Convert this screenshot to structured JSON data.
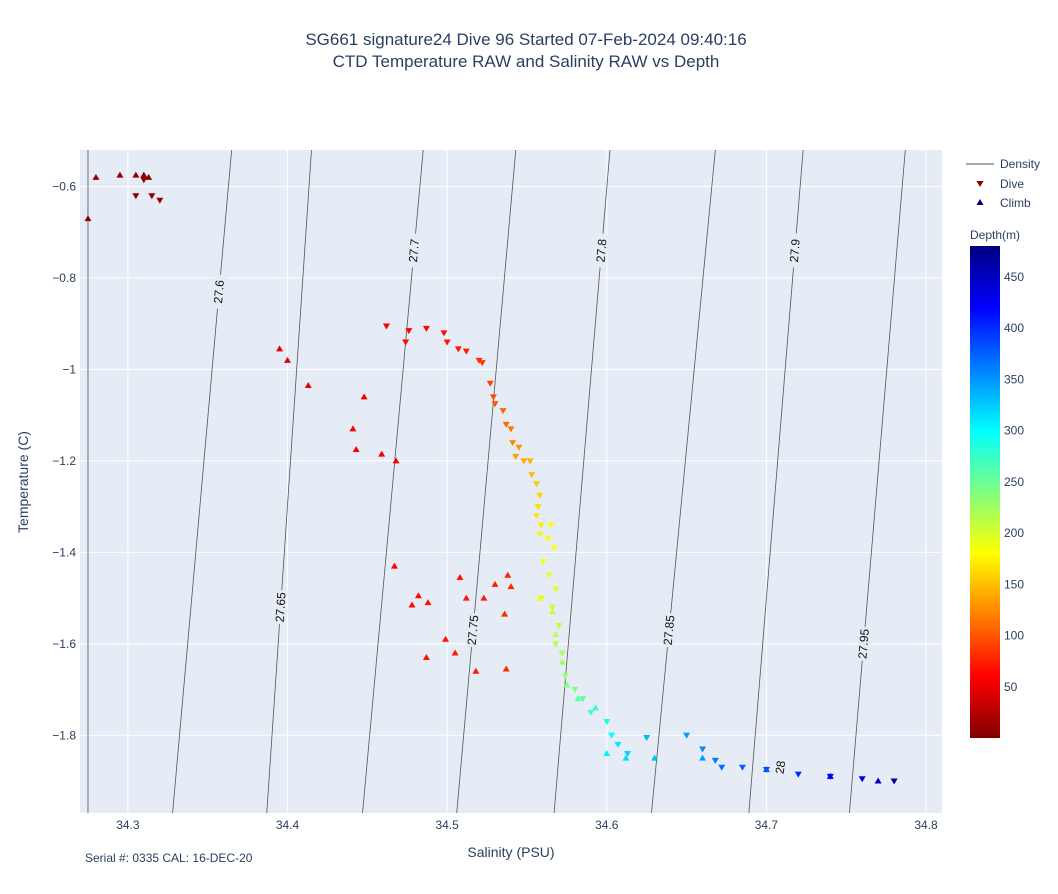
{
  "chart_data": {
    "type": "scatter",
    "title": [
      "SG661 signature24 Dive 96 Started 07-Feb-2024 09:40:16",
      "CTD Temperature RAW and Salinity RAW vs Depth"
    ],
    "xlabel": "Salinity (PSU)",
    "ylabel": "Temperature (C)",
    "xlim": [
      34.27,
      34.81
    ],
    "ylim": [
      -1.97,
      -0.52
    ],
    "xticks": [
      34.3,
      34.4,
      34.5,
      34.6,
      34.7,
      34.8
    ],
    "yticks": [
      -0.6,
      -0.8,
      -1,
      -1.2,
      -1.4,
      -1.6,
      -1.8
    ],
    "grid": true,
    "legend": {
      "placement": "top-right",
      "items": [
        "Density",
        "Dive",
        "Climb"
      ]
    },
    "colorbar": {
      "title": "Depth(m)",
      "range": [
        0,
        480
      ],
      "ticks": [
        50,
        100,
        150,
        200,
        250,
        300,
        350,
        400,
        450
      ],
      "colorscale": "jet"
    },
    "density_contours": {
      "levels": [
        27.6,
        27.65,
        27.7,
        27.75,
        27.8,
        27.85,
        27.9,
        27.95,
        28
      ],
      "labels": [
        "27.6",
        "27.65",
        "27.7",
        "27.75",
        "27.8",
        "27.85",
        "27.9",
        "27.95",
        "28"
      ],
      "s_at_top": [
        34.275,
        34.3,
        34.355,
        34.44,
        34.52,
        34.6,
        34.645,
        34.76,
        34.76
      ],
      "s_at_bottom": [
        34.275,
        34.275,
        34.335,
        34.4,
        34.455,
        34.52,
        34.58,
        34.645,
        34.705
      ],
      "extra_top": [
        34.365,
        34.415,
        34.485,
        34.543,
        34.602,
        34.668,
        34.723,
        34.787
      ],
      "extra_bottom": [
        34.328,
        34.387,
        34.447,
        34.506,
        34.567,
        34.628,
        34.689,
        34.752
      ]
    },
    "dive": [
      {
        "s": 34.31,
        "t": -0.585,
        "d": 8
      },
      {
        "s": 34.305,
        "t": -0.62,
        "d": 8
      },
      {
        "s": 34.315,
        "t": -0.62,
        "d": 8
      },
      {
        "s": 34.32,
        "t": -0.63,
        "d": 10
      },
      {
        "s": 34.462,
        "t": -0.905,
        "d": 60
      },
      {
        "s": 34.476,
        "t": -0.915,
        "d": 62
      },
      {
        "s": 34.487,
        "t": -0.91,
        "d": 64
      },
      {
        "s": 34.474,
        "t": -0.94,
        "d": 64
      },
      {
        "s": 34.498,
        "t": -0.92,
        "d": 66
      },
      {
        "s": 34.5,
        "t": -0.94,
        "d": 68
      },
      {
        "s": 34.507,
        "t": -0.955,
        "d": 70
      },
      {
        "s": 34.512,
        "t": -0.96,
        "d": 72
      },
      {
        "s": 34.52,
        "t": -0.98,
        "d": 80
      },
      {
        "s": 34.522,
        "t": -0.985,
        "d": 85
      },
      {
        "s": 34.527,
        "t": -1.03,
        "d": 90
      },
      {
        "s": 34.529,
        "t": -1.06,
        "d": 95
      },
      {
        "s": 34.53,
        "t": -1.075,
        "d": 100
      },
      {
        "s": 34.535,
        "t": -1.09,
        "d": 105
      },
      {
        "s": 34.537,
        "t": -1.12,
        "d": 110
      },
      {
        "s": 34.54,
        "t": -1.13,
        "d": 115
      },
      {
        "s": 34.541,
        "t": -1.16,
        "d": 125
      },
      {
        "s": 34.545,
        "t": -1.17,
        "d": 130
      },
      {
        "s": 34.543,
        "t": -1.19,
        "d": 135
      },
      {
        "s": 34.548,
        "t": -1.2,
        "d": 140
      },
      {
        "s": 34.552,
        "t": -1.2,
        "d": 145
      },
      {
        "s": 34.553,
        "t": -1.23,
        "d": 150
      },
      {
        "s": 34.556,
        "t": -1.25,
        "d": 155
      },
      {
        "s": 34.558,
        "t": -1.275,
        "d": 160
      },
      {
        "s": 34.557,
        "t": -1.3,
        "d": 165
      },
      {
        "s": 34.556,
        "t": -1.32,
        "d": 170
      },
      {
        "s": 34.559,
        "t": -1.34,
        "d": 172
      },
      {
        "s": 34.558,
        "t": -1.36,
        "d": 175
      },
      {
        "s": 34.563,
        "t": -1.37,
        "d": 178
      },
      {
        "s": 34.565,
        "t": -1.34,
        "d": 180
      },
      {
        "s": 34.567,
        "t": -1.39,
        "d": 180
      },
      {
        "s": 34.56,
        "t": -1.42,
        "d": 185
      },
      {
        "s": 34.564,
        "t": -1.45,
        "d": 190
      },
      {
        "s": 34.568,
        "t": -1.48,
        "d": 195
      },
      {
        "s": 34.559,
        "t": -1.5,
        "d": 200
      },
      {
        "s": 34.566,
        "t": -1.52,
        "d": 205
      },
      {
        "s": 34.57,
        "t": -1.56,
        "d": 210
      },
      {
        "s": 34.568,
        "t": -1.6,
        "d": 215
      },
      {
        "s": 34.572,
        "t": -1.62,
        "d": 220
      },
      {
        "s": 34.574,
        "t": -1.67,
        "d": 230
      },
      {
        "s": 34.58,
        "t": -1.7,
        "d": 240
      },
      {
        "s": 34.585,
        "t": -1.72,
        "d": 255
      },
      {
        "s": 34.59,
        "t": -1.75,
        "d": 270
      },
      {
        "s": 34.6,
        "t": -1.77,
        "d": 285
      },
      {
        "s": 34.603,
        "t": -1.8,
        "d": 300
      },
      {
        "s": 34.607,
        "t": -1.82,
        "d": 310
      },
      {
        "s": 34.613,
        "t": -1.84,
        "d": 320
      },
      {
        "s": 34.625,
        "t": -1.805,
        "d": 335
      },
      {
        "s": 34.65,
        "t": -1.8,
        "d": 345
      },
      {
        "s": 34.66,
        "t": -1.83,
        "d": 355
      },
      {
        "s": 34.668,
        "t": -1.855,
        "d": 362
      },
      {
        "s": 34.672,
        "t": -1.87,
        "d": 368
      },
      {
        "s": 34.685,
        "t": -1.87,
        "d": 375
      },
      {
        "s": 34.7,
        "t": -1.875,
        "d": 385
      },
      {
        "s": 34.72,
        "t": -1.885,
        "d": 400
      },
      {
        "s": 34.74,
        "t": -1.89,
        "d": 420
      },
      {
        "s": 34.76,
        "t": -1.895,
        "d": 440
      },
      {
        "s": 34.78,
        "t": -1.9,
        "d": 465
      }
    ],
    "climb": [
      {
        "s": 34.31,
        "t": -0.575,
        "d": 6
      },
      {
        "s": 34.313,
        "t": -0.58,
        "d": 6
      },
      {
        "s": 34.305,
        "t": -0.575,
        "d": 6
      },
      {
        "s": 34.295,
        "t": -0.575,
        "d": 7
      },
      {
        "s": 34.28,
        "t": -0.58,
        "d": 8
      },
      {
        "s": 34.275,
        "t": -0.67,
        "d": 8
      },
      {
        "s": 34.395,
        "t": -0.955,
        "d": 45
      },
      {
        "s": 34.4,
        "t": -0.98,
        "d": 47
      },
      {
        "s": 34.413,
        "t": -1.035,
        "d": 50
      },
      {
        "s": 34.448,
        "t": -1.06,
        "d": 52
      },
      {
        "s": 34.441,
        "t": -1.13,
        "d": 55
      },
      {
        "s": 34.443,
        "t": -1.175,
        "d": 57
      },
      {
        "s": 34.459,
        "t": -1.185,
        "d": 58
      },
      {
        "s": 34.468,
        "t": -1.2,
        "d": 60
      },
      {
        "s": 34.467,
        "t": -1.43,
        "d": 62
      },
      {
        "s": 34.482,
        "t": -1.495,
        "d": 64
      },
      {
        "s": 34.478,
        "t": -1.515,
        "d": 64
      },
      {
        "s": 34.488,
        "t": -1.51,
        "d": 66
      },
      {
        "s": 34.508,
        "t": -1.455,
        "d": 68
      },
      {
        "s": 34.512,
        "t": -1.5,
        "d": 70
      },
      {
        "s": 34.523,
        "t": -1.5,
        "d": 72
      },
      {
        "s": 34.53,
        "t": -1.47,
        "d": 74
      },
      {
        "s": 34.538,
        "t": -1.45,
        "d": 76
      },
      {
        "s": 34.536,
        "t": -1.535,
        "d": 78
      },
      {
        "s": 34.499,
        "t": -1.59,
        "d": 70
      },
      {
        "s": 34.487,
        "t": -1.63,
        "d": 68
      },
      {
        "s": 34.505,
        "t": -1.62,
        "d": 72
      },
      {
        "s": 34.518,
        "t": -1.66,
        "d": 74
      },
      {
        "s": 34.537,
        "t": -1.655,
        "d": 78
      },
      {
        "s": 34.54,
        "t": -1.475,
        "d": 78
      },
      {
        "s": 34.558,
        "t": -1.5,
        "d": 185
      },
      {
        "s": 34.566,
        "t": -1.53,
        "d": 200
      },
      {
        "s": 34.568,
        "t": -1.58,
        "d": 210
      },
      {
        "s": 34.572,
        "t": -1.64,
        "d": 225
      },
      {
        "s": 34.575,
        "t": -1.69,
        "d": 240
      },
      {
        "s": 34.582,
        "t": -1.72,
        "d": 255
      },
      {
        "s": 34.593,
        "t": -1.74,
        "d": 275
      },
      {
        "s": 34.6,
        "t": -1.84,
        "d": 305
      },
      {
        "s": 34.612,
        "t": -1.85,
        "d": 315
      },
      {
        "s": 34.63,
        "t": -1.85,
        "d": 330
      },
      {
        "s": 34.66,
        "t": -1.85,
        "d": 345
      },
      {
        "s": 34.7,
        "t": -1.875,
        "d": 380
      },
      {
        "s": 34.74,
        "t": -1.89,
        "d": 420
      },
      {
        "s": 34.77,
        "t": -1.9,
        "d": 450
      }
    ]
  },
  "footer_note": "Serial #: 0335  CAL: 16-DEC-20",
  "legend_labels": {
    "density": "Density",
    "dive": "Dive",
    "climb": "Climb"
  },
  "colorbar_title": "Depth(m)",
  "colors": {
    "plot_bg": "#e5ecf6",
    "grid": "#ffffff",
    "contour": "#555555",
    "text": "#2a3f5f"
  }
}
